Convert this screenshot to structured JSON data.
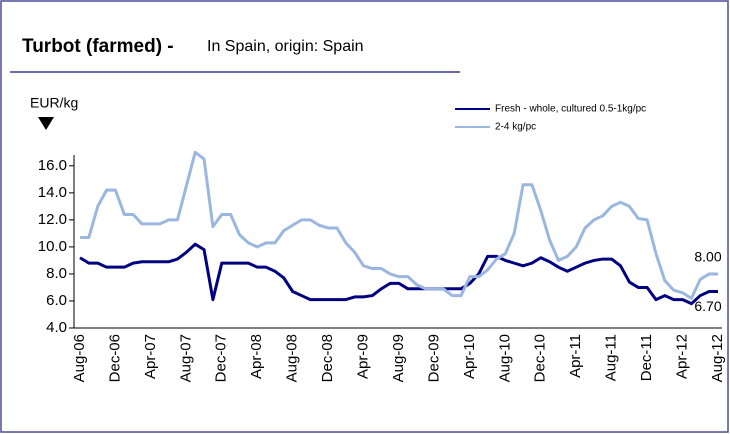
{
  "chart_data": {
    "type": "line",
    "title": "Turbot (farmed) -",
    "subtitle": "In Spain, origin: Spain",
    "y_label": "EUR/kg",
    "categories": [
      "Aug-06",
      null,
      null,
      null,
      "Dec-06",
      null,
      null,
      null,
      "Apr-07",
      null,
      null,
      null,
      "Aug-07",
      null,
      null,
      null,
      "Dec-07",
      null,
      null,
      null,
      "Apr-08",
      null,
      null,
      null,
      "Aug-08",
      null,
      null,
      null,
      "Dec-08",
      null,
      null,
      null,
      "Apr-09",
      null,
      null,
      null,
      "Aug-09",
      null,
      null,
      null,
      "Dec-09",
      null,
      null,
      null,
      "Apr-10",
      null,
      null,
      null,
      "Aug-10",
      null,
      null,
      null,
      "Dec-10",
      null,
      null,
      null,
      "Apr-11",
      null,
      null,
      null,
      "Aug-11",
      null,
      null,
      null,
      "Dec-11",
      null,
      null,
      null,
      "Apr-12",
      null,
      null,
      null,
      "Aug-12"
    ],
    "series": [
      {
        "name": "Fresh - whole,  cultured  0.5-1kg/pc",
        "color": "#000080",
        "values": [
          9.2,
          8.8,
          8.8,
          8.5,
          8.5,
          8.5,
          8.8,
          8.9,
          8.9,
          8.9,
          8.9,
          9.1,
          9.6,
          10.2,
          9.8,
          6.1,
          8.8,
          8.8,
          8.8,
          8.8,
          8.5,
          8.5,
          8.2,
          7.7,
          6.7,
          6.4,
          6.1,
          6.1,
          6.1,
          6.1,
          6.1,
          6.3,
          6.3,
          6.4,
          6.9,
          7.3,
          7.3,
          6.9,
          6.9,
          6.9,
          6.9,
          6.9,
          6.9,
          6.9,
          7.3,
          8.0,
          9.3,
          9.3,
          9.0,
          8.8,
          8.6,
          8.8,
          9.2,
          8.9,
          8.5,
          8.2,
          8.5,
          8.8,
          9.0,
          9.1,
          9.1,
          8.6,
          7.4,
          7.0,
          7.0,
          6.1,
          6.4,
          6.1,
          6.1,
          5.8,
          6.4,
          6.7,
          6.7
        ],
        "value_labels": [
          null,
          null,
          null,
          null,
          null,
          null,
          null,
          null,
          null,
          null,
          null,
          null,
          null,
          null,
          null,
          null,
          null,
          null,
          null,
          null,
          null,
          null,
          null,
          null,
          null,
          null,
          null,
          null,
          null,
          null,
          null,
          null,
          null,
          null,
          null,
          null,
          null,
          null,
          null,
          null,
          null,
          null,
          null,
          null,
          null,
          null,
          null,
          null,
          null,
          null,
          null,
          null,
          null,
          null,
          null,
          null,
          null,
          null,
          null,
          null,
          null,
          null,
          null,
          null,
          null,
          null,
          null,
          null,
          null,
          null,
          null,
          null,
          "6.70"
        ]
      },
      {
        "name": "2-4 kg/pc",
        "color": "#9bb7e0",
        "values": [
          10.7,
          10.7,
          13.0,
          14.2,
          14.2,
          12.4,
          12.4,
          11.7,
          11.7,
          11.7,
          12.0,
          12.0,
          14.5,
          17.0,
          16.5,
          11.5,
          12.4,
          12.4,
          10.9,
          10.3,
          10.0,
          10.3,
          10.3,
          11.2,
          11.6,
          12.0,
          12.0,
          11.6,
          11.4,
          11.4,
          10.3,
          9.6,
          8.6,
          8.4,
          8.4,
          8.0,
          7.8,
          7.8,
          7.2,
          6.9,
          6.9,
          6.9,
          6.4,
          6.4,
          7.8,
          7.8,
          8.3,
          9.1,
          9.5,
          11.0,
          14.6,
          14.6,
          12.7,
          10.5,
          9.0,
          9.3,
          10.0,
          11.4,
          12.0,
          12.3,
          13.0,
          13.3,
          13.0,
          12.1,
          12.0,
          9.5,
          7.5,
          6.8,
          6.6,
          6.2,
          7.6,
          8.0,
          8.0
        ],
        "value_labels": [
          null,
          null,
          null,
          null,
          null,
          null,
          null,
          null,
          null,
          null,
          null,
          null,
          null,
          null,
          null,
          null,
          null,
          null,
          null,
          null,
          null,
          null,
          null,
          null,
          null,
          null,
          null,
          null,
          null,
          null,
          null,
          null,
          null,
          null,
          null,
          null,
          null,
          null,
          null,
          null,
          null,
          null,
          null,
          null,
          null,
          null,
          null,
          null,
          null,
          null,
          null,
          null,
          null,
          null,
          null,
          null,
          null,
          null,
          null,
          null,
          null,
          null,
          null,
          null,
          null,
          null,
          null,
          null,
          null,
          null,
          null,
          null,
          "8.00"
        ]
      }
    ],
    "ylim": [
      4.0,
      16.8
    ],
    "yticks": [
      {
        "value": 4,
        "label": "4.0"
      },
      {
        "value": 6,
        "label": "6.0"
      },
      {
        "value": 8,
        "label": "8.0"
      },
      {
        "value": 10,
        "label": "10.0"
      },
      {
        "value": 12,
        "label": "12.0"
      },
      {
        "value": 14,
        "label": "14.0"
      },
      {
        "value": 16,
        "label": "16.0"
      }
    ],
    "grid": false
  }
}
